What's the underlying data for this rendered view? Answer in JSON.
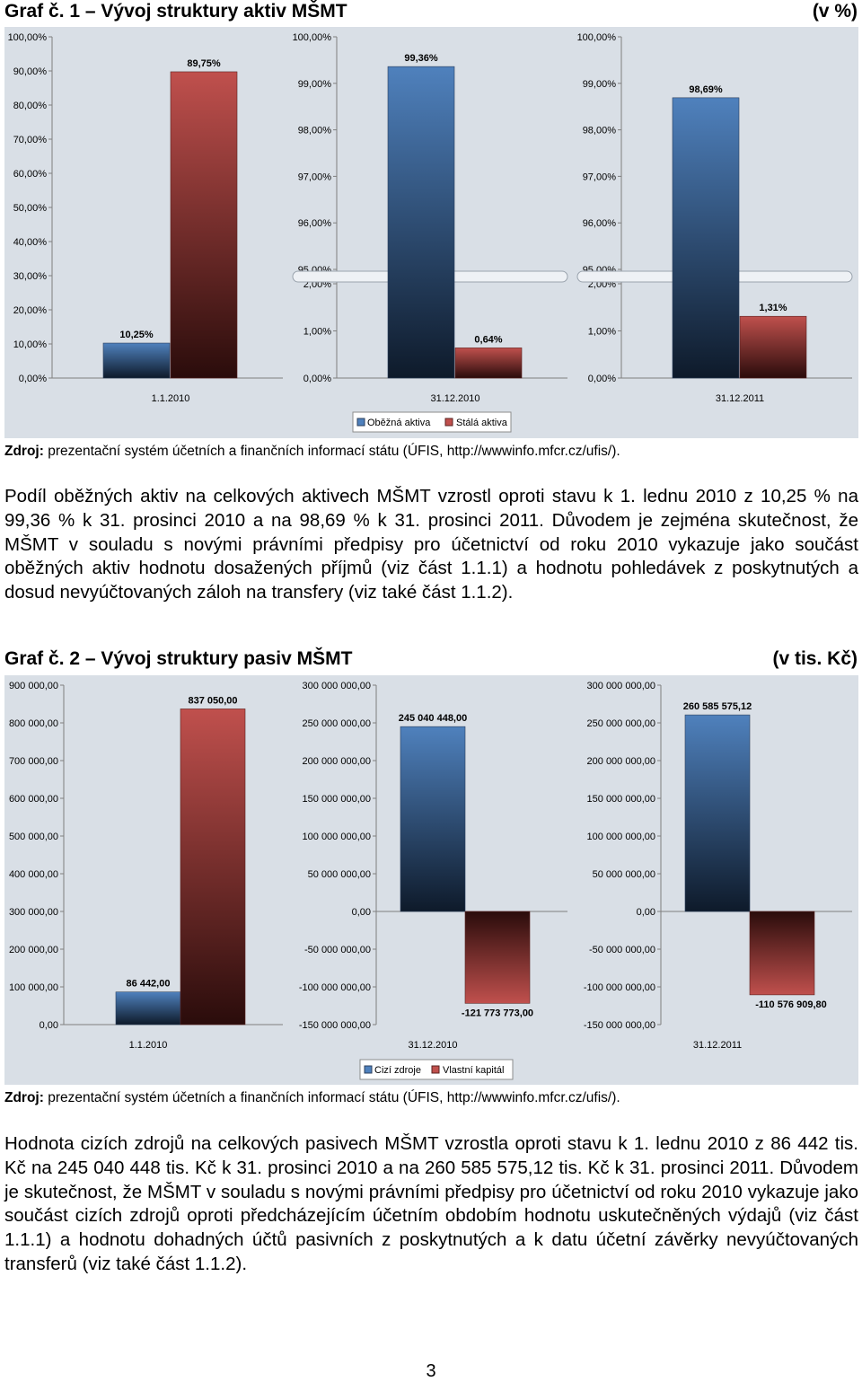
{
  "chart1": {
    "title": "Graf č. 1 – Vývoj struktury aktiv MŠMT",
    "unit": "(v %)"
  },
  "chart2": {
    "title": "Graf č. 2 – Vývoj struktury pasiv MŠMT",
    "unit": "(v tis. Kč)"
  },
  "source": {
    "label": "Zdroj:",
    "text": " prezentační systém účetních a finančních informací státu (ÚFIS, http://wwwinfo.mfcr.cz/ufis/)."
  },
  "paragraph1": "Podíl oběžných aktiv na celkových aktivech MŠMT vzrostl oproti stavu k 1. lednu 2010 z 10,25 % na 99,36 % k 31. prosinci 2010 a na 98,69 % k 31. prosinci 2011. Důvodem je zejména skutečnost, že MŠMT v souladu s novými právními předpisy pro účetnictví od roku 2010 vykazuje jako součást oběžných aktiv hodnotu dosažených příjmů (viz část 1.1.1) a hodnotu pohledávek z poskytnutých a dosud nevyúčtovaných záloh na transfery (viz také část 1.1.2).",
  "paragraph2": "Hodnota cizích zdrojů na celkových pasivech MŠMT vzrostla oproti stavu k 1. lednu 2010 z 86 442 tis. Kč na 245 040 448 tis. Kč k 31. prosinci 2010 a na 260 585 575,12 tis. Kč k 31. prosinci 2011. Důvodem je skutečnost, že MŠMT v souladu s novými právními předpisy pro účetnictví od roku 2010 vykazuje jako součást cizích zdrojů oproti předcházejícím účetním obdobím hodnotu uskutečněných výdajů (viz část 1.1.1) a hodnotu dohadných účtů pasivních z poskytnutých a k datu účetní závěrky nevyúčtovaných transferů (viz také část 1.1.2).",
  "page_number": "3",
  "colors": {
    "series1": "#4f81bd",
    "series2": "#c0504d",
    "chart_bg": "#d9dfe6"
  },
  "chart_data": [
    {
      "type": "bar",
      "categories": [
        "1.1.2010",
        "31.12.2010",
        "31.12.2011"
      ],
      "series": [
        {
          "name": "Oběžná aktiva",
          "values": [
            10.25,
            99.36,
            98.69
          ],
          "labels": [
            "10,25%",
            "99,36%",
            "98,69%"
          ]
        },
        {
          "name": "Stálá aktiva",
          "values": [
            89.75,
            0.64,
            1.31
          ],
          "labels": [
            "89,75%",
            "0,64%",
            "1,31%"
          ]
        }
      ],
      "panels": [
        {
          "axis_type": "linear",
          "ylim": [
            0,
            100
          ],
          "ticks": [
            "0,00%",
            "10,00%",
            "20,00%",
            "30,00%",
            "40,00%",
            "50,00%",
            "60,00%",
            "70,00%",
            "80,00%",
            "90,00%",
            "100,00%"
          ]
        },
        {
          "axis_type": "broken",
          "lower_range": [
            0,
            2
          ],
          "upper_range": [
            95,
            100
          ],
          "ticks": [
            "0,00%",
            "1,00%",
            "2,00%",
            "95,00%",
            "96,00%",
            "97,00%",
            "98,00%",
            "99,00%",
            "100,00%"
          ]
        },
        {
          "axis_type": "broken",
          "lower_range": [
            0,
            2
          ],
          "upper_range": [
            95,
            100
          ],
          "ticks": [
            "0,00%",
            "1,00%",
            "2,00%",
            "95,00%",
            "96,00%",
            "97,00%",
            "98,00%",
            "99,00%",
            "100,00%"
          ]
        }
      ],
      "legend_position": "bottom"
    },
    {
      "type": "bar",
      "categories": [
        "1.1.2010",
        "31.12.2010",
        "31.12.2011"
      ],
      "series": [
        {
          "name": "Cizí zdroje",
          "values": [
            86442.0,
            245040448.0,
            260585575.12
          ],
          "labels": [
            "86 442,00",
            "245 040 448,00",
            "260 585 575,12"
          ]
        },
        {
          "name": "Vlastní kapitál",
          "values": [
            837050.0,
            -121773773.0,
            -110576909.8
          ],
          "labels": [
            "837 050,00",
            "-121 773 773,00",
            "-110 576 909,80"
          ]
        }
      ],
      "panels": [
        {
          "ylim": [
            0,
            900000
          ],
          "ticks": [
            "0,00",
            "100 000,00",
            "200 000,00",
            "300 000,00",
            "400 000,00",
            "500 000,00",
            "600 000,00",
            "700 000,00",
            "800 000,00",
            "900 000,00"
          ]
        },
        {
          "ylim": [
            -150000000,
            300000000
          ],
          "ticks": [
            "-150 000 000,00",
            "-100 000 000,00",
            "-50 000 000,00",
            "0,00",
            "50 000 000,00",
            "100 000 000,00",
            "150 000 000,00",
            "200 000 000,00",
            "250 000 000,00",
            "300 000 000,00"
          ]
        },
        {
          "ylim": [
            -150000000,
            300000000
          ],
          "ticks": [
            "-150 000 000,00",
            "-100 000 000,00",
            "-50 000 000,00",
            "0,00",
            "50 000 000,00",
            "100 000 000,00",
            "150 000 000,00",
            "200 000 000,00",
            "250 000 000,00",
            "300 000 000,00"
          ]
        }
      ],
      "legend_position": "bottom"
    }
  ]
}
